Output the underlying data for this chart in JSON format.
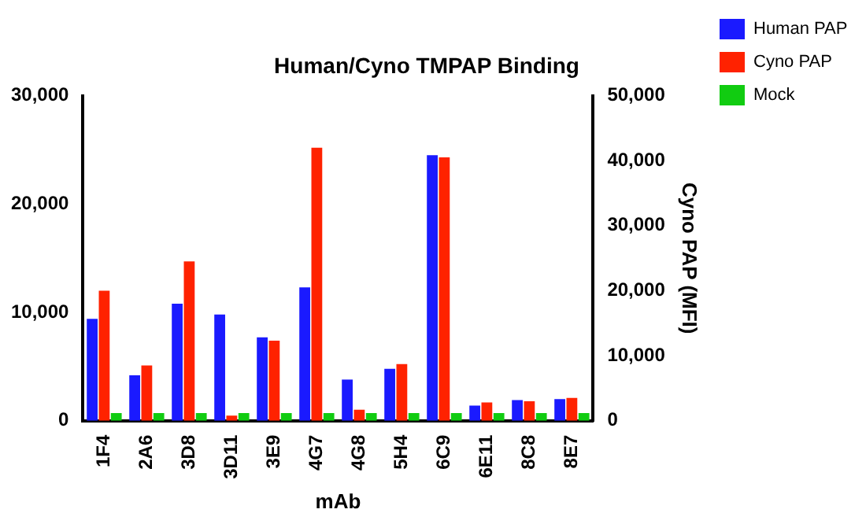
{
  "chart_data": {
    "type": "bar",
    "title": "Human/Cyno TMPAP Binding",
    "xlabel": "mAb",
    "y2label": "Cyno PAP (MFI)",
    "categories": [
      "1F4",
      "2A6",
      "3D8",
      "3D11",
      "3E9",
      "4G7",
      "4G8",
      "5H4",
      "6C9",
      "6E11",
      "8C8",
      "8E7"
    ],
    "series": [
      {
        "name": "Human PAP",
        "color": "#1a1aff",
        "values": [
          9400,
          4200,
          10800,
          9800,
          7700,
          12300,
          3800,
          4800,
          24500,
          1400,
          1900,
          2000
        ]
      },
      {
        "name": "Cyno PAP",
        "color": "#ff2200",
        "axis": "y2",
        "values": [
          20000,
          8500,
          24500,
          800,
          12300,
          42000,
          1700,
          8700,
          40500,
          2800,
          3000,
          3500
        ]
      },
      {
        "name": "Mock",
        "color": "#11cc11",
        "values": [
          700,
          700,
          700,
          700,
          700,
          700,
          700,
          700,
          700,
          700,
          700,
          700
        ]
      }
    ],
    "ylim": [
      0,
      30000
    ],
    "yticks": [
      {
        "value": 0,
        "label": "0"
      },
      {
        "value": 10000,
        "label": "10,000"
      },
      {
        "value": 20000,
        "label": "20,000"
      },
      {
        "value": 30000,
        "label": "30,000"
      }
    ],
    "y2lim": [
      0,
      50000
    ],
    "y2ticks": [
      {
        "value": 0,
        "label": "0"
      },
      {
        "value": 10000,
        "label": "10,000"
      },
      {
        "value": 20000,
        "label": "20,000"
      },
      {
        "value": 30000,
        "label": "30,000"
      },
      {
        "value": 40000,
        "label": "40,000"
      },
      {
        "value": 50000,
        "label": "50,000"
      }
    ],
    "grid": false,
    "legend": "top right"
  }
}
